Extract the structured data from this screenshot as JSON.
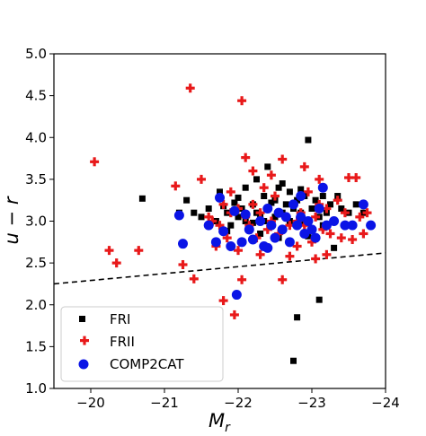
{
  "chart_data": {
    "type": "scatter",
    "xlabel": "M_r",
    "ylabel": "u − r",
    "x_inverted": true,
    "xlim": [
      -19.5,
      -24.0
    ],
    "ylim": [
      1.0,
      5.0
    ],
    "xticks": [
      -20,
      -21,
      -22,
      -23,
      -24
    ],
    "xtick_labels": [
      "−20",
      "−21",
      "−22",
      "−23",
      "−24"
    ],
    "yticks": [
      1.0,
      1.5,
      2.0,
      2.5,
      3.0,
      3.5,
      4.0,
      4.5,
      5.0
    ],
    "ytick_labels": [
      "1.0",
      "1.5",
      "2.0",
      "2.5",
      "3.0",
      "3.5",
      "4.0",
      "4.5",
      "5.0"
    ],
    "grid": false,
    "legend_position": "lower-left",
    "separator_line": {
      "style": "dashed",
      "color": "#000000",
      "points": [
        [
          -19.5,
          2.25
        ],
        [
          -24.0,
          2.62
        ]
      ]
    },
    "series": [
      {
        "name": "FRI",
        "marker": "square",
        "color": "#000000",
        "points": [
          [
            -20.7,
            3.27
          ],
          [
            -21.3,
            3.25
          ],
          [
            -21.4,
            3.1
          ],
          [
            -21.5,
            3.05
          ],
          [
            -21.6,
            3.15
          ],
          [
            -21.7,
            3.0
          ],
          [
            -21.75,
            3.35
          ],
          [
            -21.8,
            3.18
          ],
          [
            -21.85,
            3.1
          ],
          [
            -21.9,
            2.95
          ],
          [
            -21.95,
            3.22
          ],
          [
            -22.0,
            3.05
          ],
          [
            -22.05,
            3.15
          ],
          [
            -22.1,
            3.4
          ],
          [
            -22.1,
            3.0
          ],
          [
            -22.15,
            2.92
          ],
          [
            -22.2,
            3.2
          ],
          [
            -22.25,
            3.1
          ],
          [
            -22.25,
            3.5
          ],
          [
            -22.3,
            3.05
          ],
          [
            -22.3,
            2.85
          ],
          [
            -22.35,
            3.3
          ],
          [
            -22.4,
            3.15
          ],
          [
            -22.4,
            3.65
          ],
          [
            -22.45,
            2.95
          ],
          [
            -22.5,
            3.25
          ],
          [
            -22.5,
            3.05
          ],
          [
            -22.55,
            3.4
          ],
          [
            -22.6,
            3.1
          ],
          [
            -22.6,
            2.9
          ],
          [
            -22.65,
            3.2
          ],
          [
            -22.7,
            3.0
          ],
          [
            -22.7,
            3.35
          ],
          [
            -22.75,
            3.15
          ],
          [
            -22.8,
            2.95
          ],
          [
            -22.8,
            3.25
          ],
          [
            -22.85,
            3.1
          ],
          [
            -22.9,
            3.3
          ],
          [
            -22.9,
            3.0
          ],
          [
            -22.95,
            3.97
          ],
          [
            -23.0,
            3.15
          ],
          [
            -23.0,
            2.9
          ],
          [
            -23.05,
            3.25
          ],
          [
            -23.1,
            3.05
          ],
          [
            -23.15,
            3.3
          ],
          [
            -23.2,
            3.1
          ],
          [
            -23.25,
            3.2
          ],
          [
            -23.3,
            3.0
          ],
          [
            -23.35,
            3.3
          ],
          [
            -23.4,
            3.15
          ],
          [
            -23.5,
            3.1
          ],
          [
            -23.6,
            3.2
          ],
          [
            -23.7,
            3.1
          ],
          [
            -22.6,
            3.45
          ],
          [
            -22.45,
            3.22
          ],
          [
            -22.2,
            2.98
          ],
          [
            -22.0,
            3.28
          ],
          [
            -21.85,
            2.88
          ],
          [
            -22.55,
            2.8
          ],
          [
            -22.95,
            2.82
          ],
          [
            -23.3,
            2.68
          ],
          [
            -23.1,
            2.06
          ],
          [
            -22.8,
            1.85
          ],
          [
            -22.75,
            1.33
          ],
          [
            -21.2,
            3.1
          ],
          [
            -23.55,
            2.95
          ],
          [
            -22.35,
            3.0
          ],
          [
            -22.65,
            3.05
          ],
          [
            -23.15,
            2.95
          ],
          [
            -22.85,
            3.38
          ]
        ]
      },
      {
        "name": "FRII",
        "marker": "plus",
        "color": "#e8191a",
        "points": [
          [
            -20.05,
            3.71
          ],
          [
            -20.25,
            2.65
          ],
          [
            -20.35,
            2.5
          ],
          [
            -20.65,
            2.65
          ],
          [
            -21.15,
            3.42
          ],
          [
            -21.25,
            2.48
          ],
          [
            -21.35,
            4.59
          ],
          [
            -21.4,
            2.31
          ],
          [
            -21.5,
            3.5
          ],
          [
            -21.6,
            1.7
          ],
          [
            -21.65,
            3.0
          ],
          [
            -21.7,
            2.7
          ],
          [
            -21.75,
            2.95
          ],
          [
            -21.8,
            2.05
          ],
          [
            -21.8,
            3.2
          ],
          [
            -21.85,
            2.8
          ],
          [
            -21.9,
            3.1
          ],
          [
            -21.95,
            1.88
          ],
          [
            -22.0,
            2.65
          ],
          [
            -22.05,
            2.3
          ],
          [
            -22.05,
            4.44
          ],
          [
            -22.1,
            3.76
          ],
          [
            -22.1,
            3.05
          ],
          [
            -22.15,
            2.95
          ],
          [
            -22.2,
            3.2
          ],
          [
            -22.25,
            2.8
          ],
          [
            -22.3,
            3.1
          ],
          [
            -22.35,
            3.4
          ],
          [
            -22.4,
            2.9
          ],
          [
            -22.45,
            3.0
          ],
          [
            -22.5,
            3.3
          ],
          [
            -22.55,
            2.85
          ],
          [
            -22.6,
            3.74
          ],
          [
            -22.6,
            2.3
          ],
          [
            -22.65,
            3.05
          ],
          [
            -22.7,
            2.95
          ],
          [
            -22.75,
            3.2
          ],
          [
            -22.8,
            2.7
          ],
          [
            -22.85,
            3.1
          ],
          [
            -22.9,
            2.95
          ],
          [
            -22.95,
            3.35
          ],
          [
            -23.0,
            2.75
          ],
          [
            -23.05,
            3.05
          ],
          [
            -23.1,
            3.5
          ],
          [
            -23.15,
            2.9
          ],
          [
            -23.2,
            3.15
          ],
          [
            -23.25,
            2.85
          ],
          [
            -23.3,
            3.0
          ],
          [
            -23.35,
            3.25
          ],
          [
            -23.4,
            2.8
          ],
          [
            -23.45,
            3.1
          ],
          [
            -23.5,
            3.52
          ],
          [
            -23.55,
            2.95
          ],
          [
            -23.6,
            3.52
          ],
          [
            -23.65,
            3.05
          ],
          [
            -23.7,
            2.85
          ],
          [
            -23.75,
            3.1
          ],
          [
            -23.05,
            2.55
          ],
          [
            -22.9,
            3.65
          ],
          [
            -22.45,
            3.55
          ],
          [
            -22.2,
            3.6
          ],
          [
            -21.9,
            3.35
          ],
          [
            -21.6,
            3.05
          ],
          [
            -22.3,
            2.6
          ],
          [
            -22.7,
            2.58
          ],
          [
            -23.2,
            2.6
          ],
          [
            -23.55,
            2.78
          ],
          [
            -22.0,
            3.15
          ],
          [
            -22.8,
            3.0
          ],
          [
            -23.1,
            3.2
          ]
        ]
      },
      {
        "name": "COMP2CAT",
        "marker": "circle",
        "color": "#0a14e6",
        "points": [
          [
            -21.2,
            3.07
          ],
          [
            -21.25,
            2.73
          ],
          [
            -21.6,
            2.95
          ],
          [
            -21.7,
            2.75
          ],
          [
            -21.75,
            3.28
          ],
          [
            -21.8,
            2.88
          ],
          [
            -21.9,
            2.7
          ],
          [
            -21.95,
            3.12
          ],
          [
            -21.98,
            2.12
          ],
          [
            -22.05,
            2.75
          ],
          [
            -22.1,
            3.08
          ],
          [
            -22.15,
            2.9
          ],
          [
            -22.2,
            2.78
          ],
          [
            -22.3,
            3.0
          ],
          [
            -22.35,
            2.7
          ],
          [
            -22.4,
            3.15
          ],
          [
            -22.45,
            2.95
          ],
          [
            -22.5,
            2.8
          ],
          [
            -22.55,
            3.1
          ],
          [
            -22.6,
            2.9
          ],
          [
            -22.65,
            3.05
          ],
          [
            -22.7,
            2.75
          ],
          [
            -22.75,
            3.2
          ],
          [
            -22.8,
            2.95
          ],
          [
            -22.85,
            3.05
          ],
          [
            -22.9,
            2.85
          ],
          [
            -22.95,
            3.0
          ],
          [
            -23.0,
            2.9
          ],
          [
            -23.05,
            2.8
          ],
          [
            -23.1,
            3.15
          ],
          [
            -23.15,
            3.4
          ],
          [
            -23.2,
            2.95
          ],
          [
            -23.3,
            3.0
          ],
          [
            -23.45,
            2.95
          ],
          [
            -23.55,
            2.95
          ],
          [
            -23.7,
            3.2
          ],
          [
            -23.8,
            2.95
          ],
          [
            -22.4,
            2.68
          ],
          [
            -22.85,
            3.3
          ]
        ]
      }
    ]
  }
}
